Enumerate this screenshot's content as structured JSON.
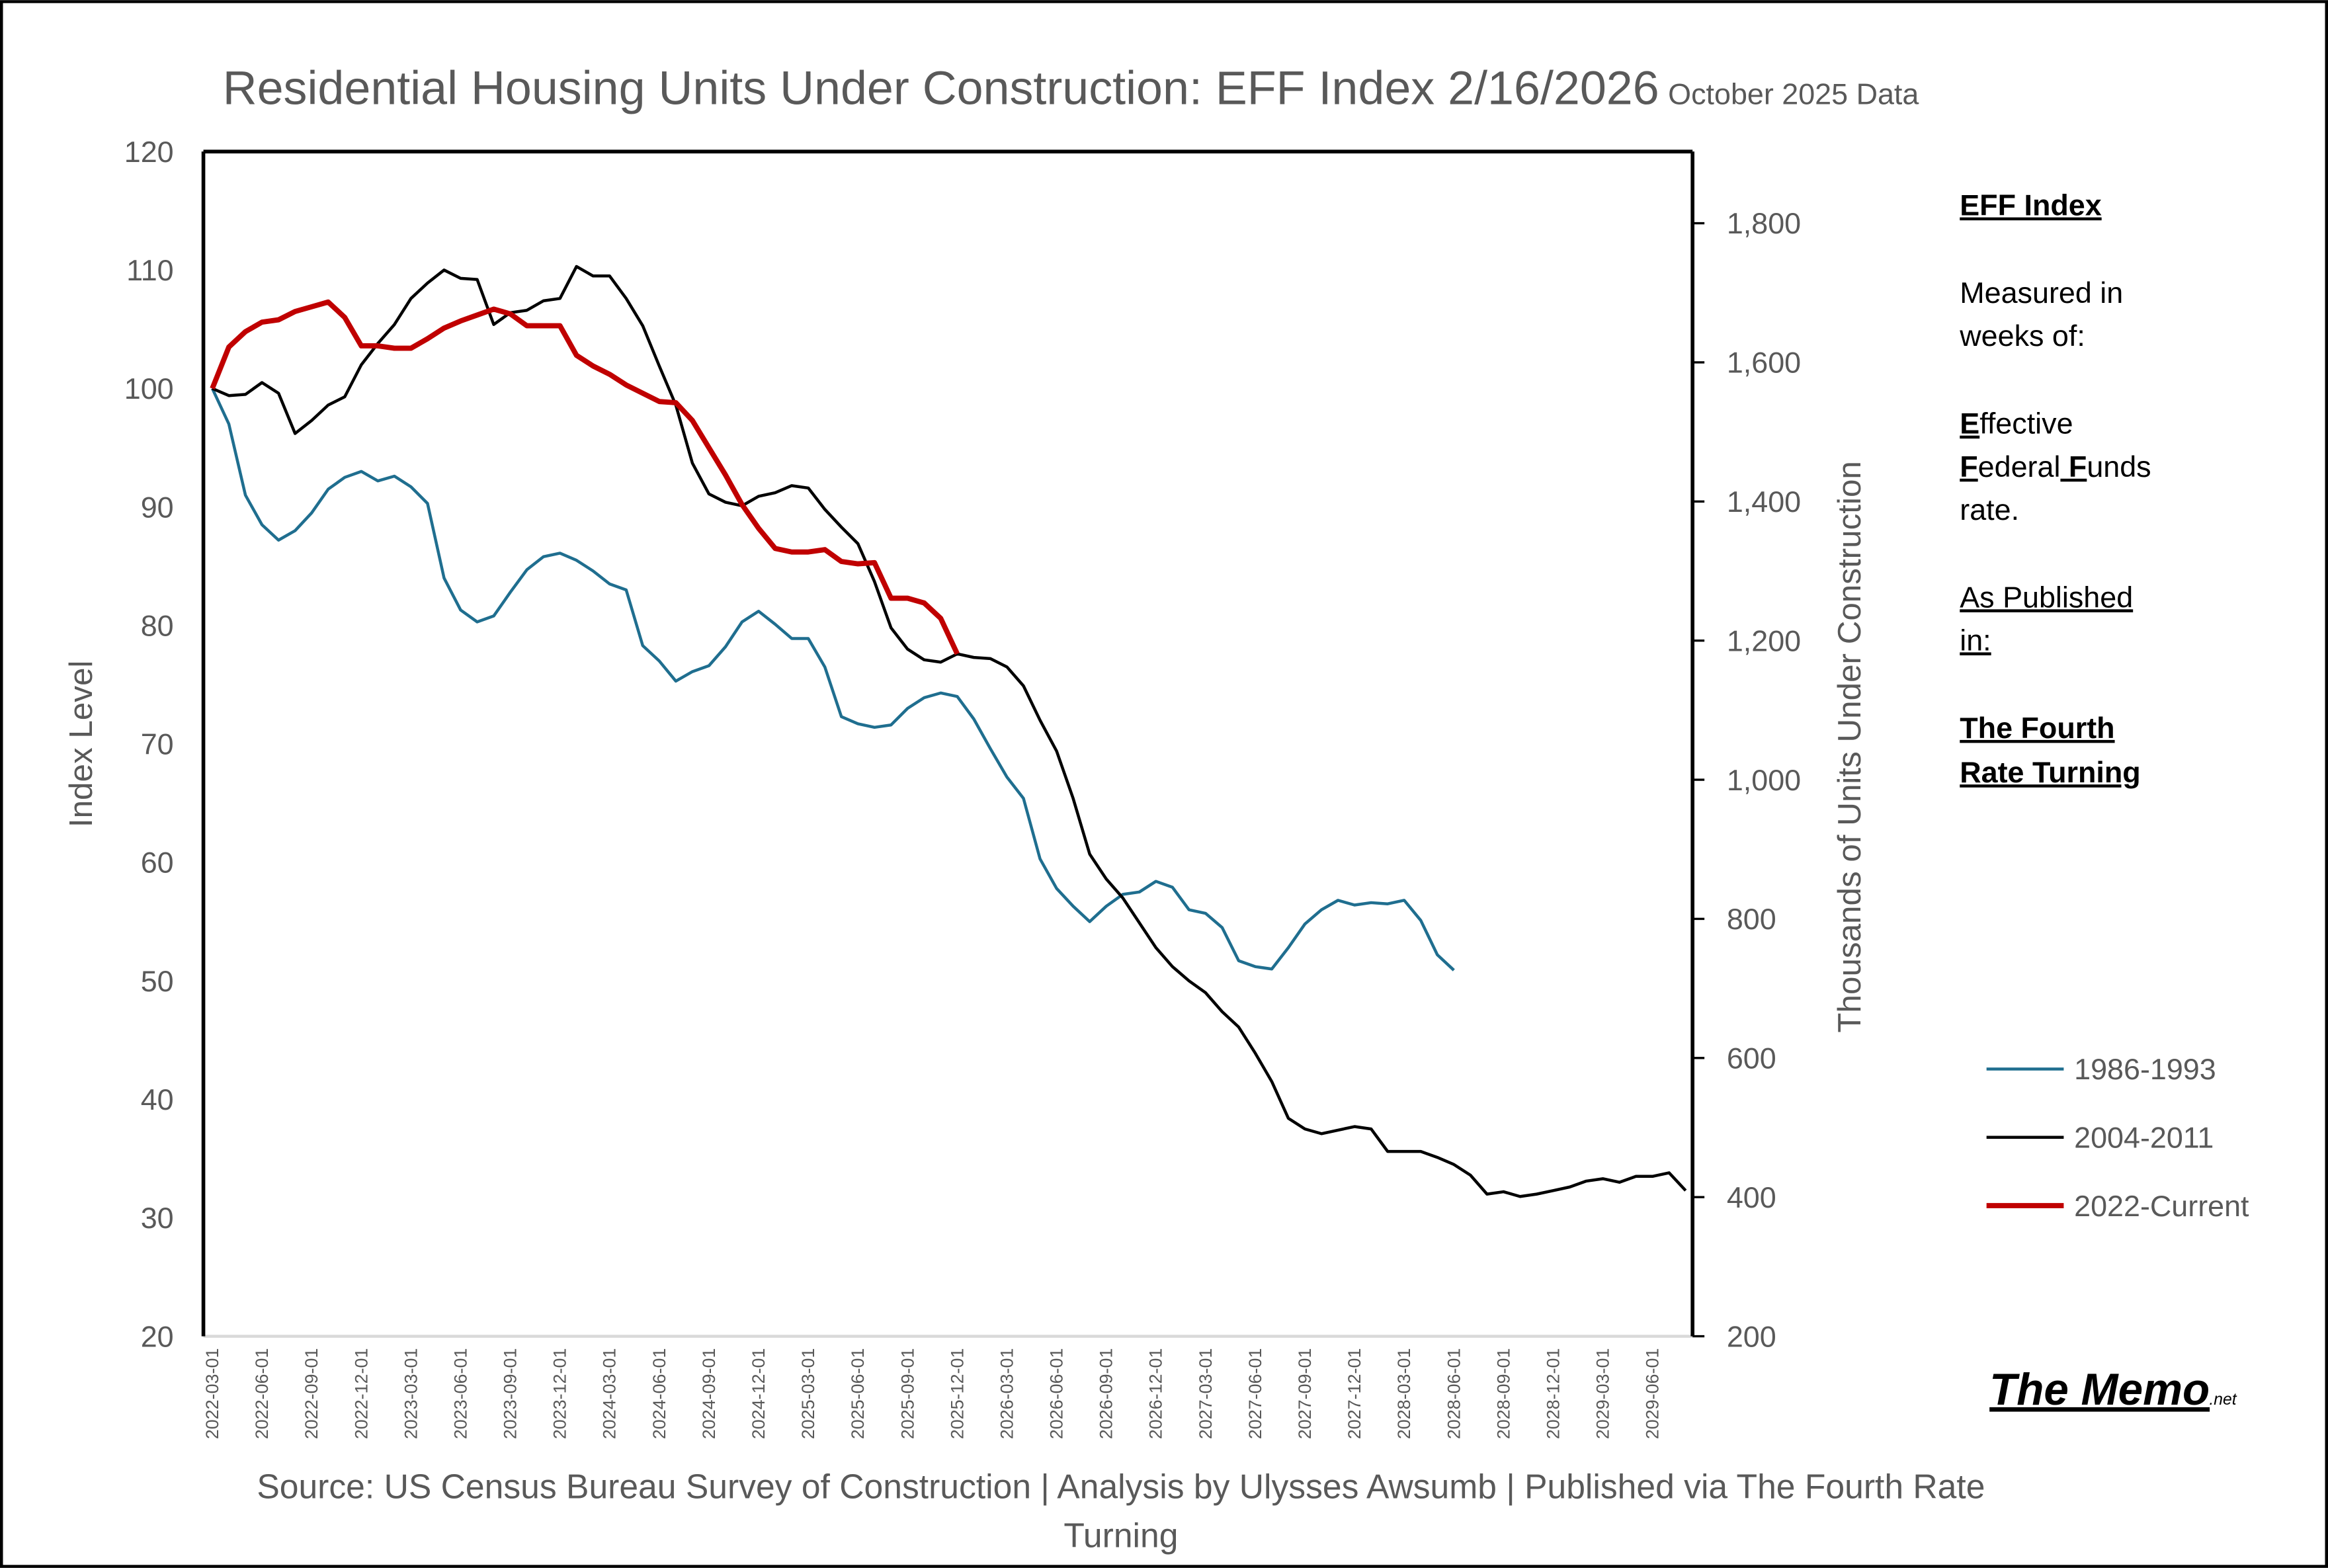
{
  "chart_data": {
    "type": "line",
    "title": "Residential Housing Units Under Construction: EFF Index 2/16/2026",
    "subtitle": "October 2025 Data",
    "y_label": "Index Level",
    "y2_label": "Thousands of Units Under Construction",
    "categories": [
      "2022-03-01",
      null,
      null,
      "2022-06-01",
      null,
      null,
      "2022-09-01",
      null,
      null,
      "2022-12-01",
      null,
      null,
      "2023-03-01",
      null,
      null,
      "2023-06-01",
      null,
      null,
      "2023-09-01",
      null,
      null,
      "2023-12-01",
      null,
      null,
      "2024-03-01",
      null,
      null,
      "2024-06-01",
      null,
      null,
      "2024-09-01",
      null,
      null,
      "2024-12-01",
      null,
      null,
      "2025-03-01",
      null,
      null,
      "2025-06-01",
      null,
      null,
      "2025-09-01",
      null,
      null,
      "2025-12-01",
      null,
      null,
      "2026-03-01",
      null,
      null,
      "2026-06-01",
      null,
      null,
      "2026-09-01",
      null,
      null,
      "2026-12-01",
      null,
      null,
      "2027-03-01",
      null,
      null,
      "2027-06-01",
      null,
      null,
      "2027-09-01",
      null,
      null,
      "2027-12-01",
      null,
      null,
      "2028-03-01",
      null,
      null,
      "2028-06-01",
      null,
      null,
      "2028-09-01",
      null,
      null,
      "2028-12-01",
      null,
      null,
      "2029-03-01",
      null,
      null,
      "2029-06-01",
      null,
      null
    ],
    "series": [
      {
        "name": "1986-1993",
        "color": "#1f6e8f",
        "values": [
          100,
          97,
          91,
          88.5,
          87.2,
          88,
          89.5,
          91.5,
          92.5,
          93,
          92.2,
          92.6,
          91.7,
          90.3,
          84,
          81.3,
          80.3,
          80.8,
          82.8,
          84.7,
          85.8,
          86.1,
          85.5,
          84.6,
          83.5,
          83,
          78.3,
          77,
          75.3,
          76.1,
          76.6,
          78.2,
          80.3,
          81.2,
          80.1,
          78.9,
          78.9,
          76.5,
          72.3,
          71.7,
          71.4,
          71.6,
          73,
          73.9,
          74.3,
          74,
          72.1,
          69.6,
          67.2,
          65.4,
          60.3,
          57.8,
          56.3,
          55,
          56.3,
          57.3,
          57.5,
          58.4,
          57.9,
          56,
          55.7,
          54.5,
          51.7,
          51.2,
          51,
          52.8,
          54.8,
          56,
          56.8,
          56.4,
          56.6,
          56.5,
          56.8,
          55.1,
          52.2,
          50.9,
          null,
          null,
          null,
          null,
          null,
          null,
          null,
          null,
          null,
          null,
          null,
          null,
          null,
          null
        ]
      },
      {
        "name": "2004-2011",
        "color": "#000000",
        "values": [
          100,
          99.4,
          99.5,
          100.5,
          99.6,
          96.2,
          97.3,
          98.6,
          99.3,
          102,
          103.8,
          105.4,
          107.6,
          108.9,
          110,
          109.3,
          109.2,
          105.4,
          106.4,
          106.6,
          107.4,
          107.6,
          110.3,
          109.5,
          109.5,
          107.6,
          105.3,
          101.9,
          98.6,
          93.7,
          91.1,
          90.4,
          90.1,
          90.9,
          91.2,
          91.8,
          91.6,
          89.8,
          88.3,
          86.9,
          83.7,
          79.8,
          78,
          77.1,
          76.9,
          77.6,
          77.3,
          77.2,
          76.5,
          74.9,
          72,
          69.4,
          65.4,
          60.7,
          58.6,
          57,
          54.9,
          52.8,
          51.2,
          50,
          49,
          47.4,
          46.1,
          43.9,
          41.5,
          38.4,
          37.5,
          37.1,
          37.4,
          37.7,
          37.5,
          35.6,
          35.6,
          35.6,
          35.1,
          34.5,
          33.6,
          32,
          32.2,
          31.8,
          32,
          32.3,
          32.6,
          33.1,
          33.3,
          33,
          33.5,
          33.5,
          33.8,
          32.3
        ]
      },
      {
        "name": "2022-Current",
        "color": "#c00000",
        "values": [
          100,
          103.5,
          104.8,
          105.6,
          105.8,
          106.5,
          106.9,
          107.3,
          106,
          103.6,
          103.6,
          103.4,
          103.4,
          104.2,
          105.1,
          105.7,
          106.2,
          106.7,
          106.3,
          105.3,
          105.3,
          105.3,
          102.8,
          101.9,
          101.2,
          100.3,
          99.6,
          98.9,
          98.8,
          97.3,
          95,
          92.7,
          90.2,
          88.2,
          86.5,
          86.2,
          86.2,
          86.4,
          85.4,
          85.2,
          85.3,
          82.3,
          82.3,
          81.9,
          80.6,
          77.6,
          null,
          null,
          null,
          null,
          null,
          null,
          null,
          null,
          null,
          null,
          null,
          null,
          null,
          null,
          null,
          null,
          null,
          null,
          null,
          null,
          null,
          null,
          null,
          null,
          null,
          null,
          null,
          null,
          null,
          null,
          null,
          null,
          null,
          null,
          null,
          null,
          null,
          null,
          null,
          null,
          null,
          null,
          null,
          null
        ]
      }
    ],
    "ylim": [
      20,
      120
    ],
    "yticks": [
      20,
      30,
      40,
      50,
      60,
      70,
      80,
      90,
      100,
      110,
      120
    ],
    "y2lim": [
      200,
      1903
    ],
    "y2ticks": [
      200,
      400,
      600,
      800,
      {
        "value": 1000,
        "label": "1,000"
      },
      {
        "value": 1200,
        "label": "1,200"
      },
      {
        "value": 1400,
        "label": "1,400"
      },
      {
        "value": 1600,
        "label": "1,600"
      },
      {
        "value": 1800,
        "label": "1,800"
      }
    ],
    "grid": false,
    "side_note": [
      "EFF Index",
      "Measured in",
      "weeks of:",
      "Effective",
      "Federal Funds",
      "rate.",
      "As Published",
      "in:",
      "The Fourth",
      "Rate Turning"
    ],
    "logo": "The Memo",
    "logo_suffix": ".net",
    "source": [
      "Source: US Census Bureau Survey of Construction | Analysis by Ulysses Awsumb | Published via The Fourth Rate",
      "Turning"
    ]
  }
}
